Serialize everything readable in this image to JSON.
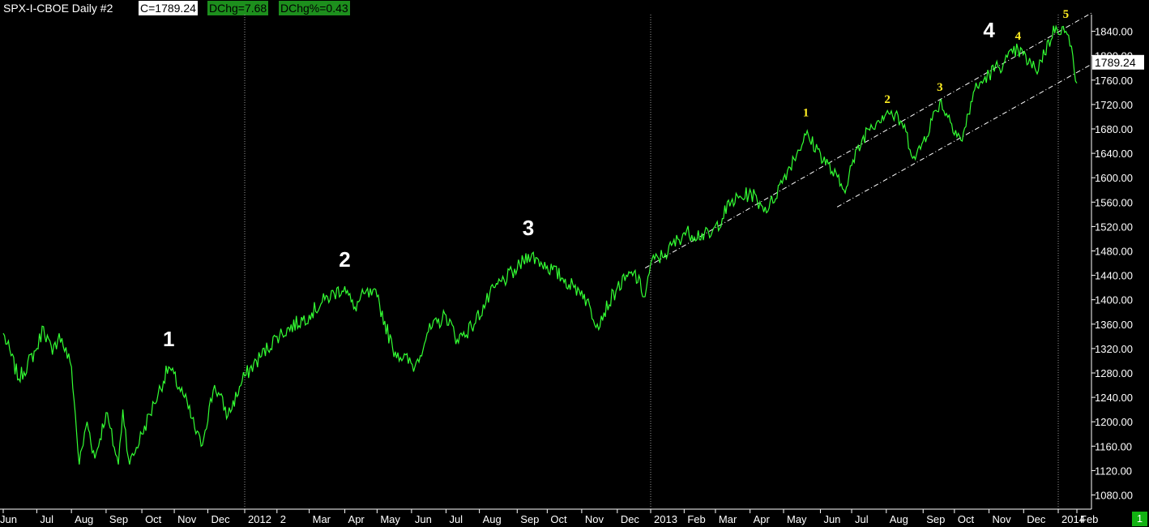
{
  "header": {
    "symbol": "SPX-I-CBOE  Daily  #2",
    "close": "C=1789.24",
    "dchg": "DChg=7.68",
    "dchg_pct": "DChg%=0.43"
  },
  "page_badge": "1",
  "colors": {
    "background": "#000000",
    "price_line": "#33ff33",
    "axis": "#ffffff",
    "channel": "#ffffff",
    "major_wave": "#ffffff",
    "minor_wave": "#ffee22",
    "last_price_box": "#ffffff"
  },
  "chart_data": {
    "type": "line",
    "title": "SPX-I-CBOE Daily #2",
    "ylim": [
      1060,
      1880
    ],
    "y_ticks": [
      1080,
      1120,
      1160,
      1200,
      1240,
      1280,
      1320,
      1360,
      1400,
      1440,
      1480,
      1520,
      1560,
      1600,
      1640,
      1680,
      1720,
      1760,
      1800,
      1840
    ],
    "y_tick_labels": [
      "1080.00",
      "1120.00",
      "1160.00",
      "1200.00",
      "1240.00",
      "1280.00",
      "1320.00",
      "1360.00",
      "1400.00",
      "1440.00",
      "1480.00",
      "1520.00",
      "1560.00",
      "1600.00",
      "1640.00",
      "1680.00",
      "1720.00",
      "1760.00",
      "1800.00",
      "1840.00"
    ],
    "last_price": 1789.24,
    "last_price_label": "1789.24",
    "x_ticks": [
      "Jun",
      "Jul",
      "Aug",
      "Sep",
      "Oct",
      "Nov",
      "Dec",
      "2012",
      "2",
      "Mar",
      "Apr",
      "May",
      "Jun",
      "Jul",
      "Aug",
      "Sep",
      "Oct",
      "Nov",
      "Dec",
      "2013",
      "Feb",
      "Mar",
      "Apr",
      "May",
      "Jun",
      "Jul",
      "Aug",
      "Sep",
      "Oct",
      "Nov",
      "Dec",
      "2014",
      "Feb"
    ],
    "year_markers": [
      "2012",
      "2013",
      "2014"
    ],
    "grid": false,
    "series": [
      {
        "x": [
          "2011-06-01",
          "2011-06-15",
          "2011-07-01",
          "2011-07-07",
          "2011-07-15",
          "2011-07-21",
          "2011-08-01",
          "2011-08-08",
          "2011-08-15",
          "2011-08-22",
          "2011-09-01",
          "2011-09-12",
          "2011-09-16",
          "2011-09-22",
          "2011-10-03",
          "2011-10-14",
          "2011-10-27",
          "2011-11-10",
          "2011-11-25",
          "2011-12-07",
          "2011-12-19",
          "2012-01-03",
          "2012-02-01",
          "2012-03-01",
          "2012-03-15",
          "2012-04-02",
          "2012-04-10",
          "2012-04-20",
          "2012-05-01",
          "2012-05-15",
          "2012-06-04",
          "2012-06-15",
          "2012-07-02",
          "2012-07-12",
          "2012-07-25",
          "2012-08-15",
          "2012-09-04",
          "2012-09-14",
          "2012-10-01",
          "2012-10-15",
          "2012-10-25",
          "2012-11-01",
          "2012-11-15",
          "2012-12-03",
          "2012-12-18",
          "2012-12-28",
          "2013-01-02",
          "2013-01-15",
          "2013-02-01",
          "2013-02-25",
          "2013-03-15",
          "2013-04-02",
          "2013-04-11",
          "2013-04-18",
          "2013-05-01",
          "2013-05-21",
          "2013-06-03",
          "2013-06-24",
          "2013-07-01",
          "2013-07-15",
          "2013-08-02",
          "2013-08-15",
          "2013-08-27",
          "2013-09-18",
          "2013-10-08",
          "2013-10-18",
          "2013-11-01",
          "2013-11-15",
          "2013-11-27",
          "2013-12-13",
          "2013-12-31",
          "2014-01-15",
          "2014-01-27",
          "2014-02-03"
        ],
        "values": [
          1345,
          1270,
          1320,
          1356,
          1310,
          1345,
          1290,
          1130,
          1200,
          1140,
          1215,
          1130,
          1220,
          1130,
          1180,
          1230,
          1290,
          1240,
          1160,
          1260,
          1210,
          1275,
          1340,
          1375,
          1400,
          1422,
          1385,
          1410,
          1405,
          1320,
          1290,
          1345,
          1375,
          1335,
          1355,
          1420,
          1450,
          1475,
          1455,
          1435,
          1420,
          1415,
          1360,
          1420,
          1445,
          1405,
          1460,
          1475,
          1510,
          1505,
          1560,
          1575,
          1555,
          1550,
          1600,
          1670,
          1640,
          1580,
          1620,
          1680,
          1710,
          1690,
          1630,
          1725,
          1660,
          1740,
          1770,
          1790,
          1810,
          1775,
          1848,
          1840,
          1800,
          1755
        ]
      }
    ],
    "annotations": [
      {
        "text": "1",
        "date": "2011-10-27",
        "y": 1292,
        "level": "major"
      },
      {
        "text": "2",
        "date": "2012-04-02",
        "y": 1422,
        "level": "major"
      },
      {
        "text": "3",
        "date": "2012-09-14",
        "y": 1474,
        "level": "major"
      },
      {
        "text": "4",
        "date": "2013-11-01",
        "y": 1798,
        "level": "major"
      },
      {
        "text": "1",
        "date": "2013-05-21",
        "y": 1687,
        "level": "minor"
      },
      {
        "text": "2",
        "date": "2013-08-02",
        "y": 1709,
        "level": "minor"
      },
      {
        "text": "3",
        "date": "2013-09-18",
        "y": 1729,
        "level": "minor"
      },
      {
        "text": "4",
        "date": "2013-11-27",
        "y": 1813,
        "level": "minor"
      },
      {
        "text": "5",
        "date": "2014-01-15",
        "y": 1849,
        "level": "minor"
      }
    ],
    "trendlines": [
      {
        "from": {
          "date": "2012-12-28",
          "y": 1452
        },
        "to": {
          "date": "2014-02-28",
          "y": 1870
        }
      },
      {
        "from": {
          "date": "2013-06-18",
          "y": 1552
        },
        "to": {
          "date": "2014-02-28",
          "y": 1786
        }
      }
    ]
  }
}
